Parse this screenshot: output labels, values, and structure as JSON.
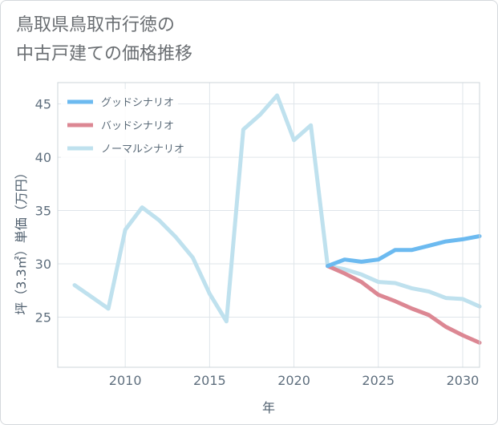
{
  "title": {
    "line1": "鳥取県鳥取市行徳の",
    "line2": "中古戸建ての価格推移"
  },
  "chart_data": {
    "type": "line",
    "xlabel": "年",
    "ylabel": "坪（3.3㎡）単価（万円）",
    "xlim": [
      2006,
      2031
    ],
    "ylim": [
      20.3,
      47
    ],
    "xticks": [
      2010,
      2015,
      2020,
      2025,
      2030
    ],
    "yticks": [
      25,
      30,
      35,
      40,
      45
    ],
    "legend_position": "top-left",
    "series": [
      {
        "name": "ノーマルシナリオ",
        "color": "#bfe1ee",
        "x": [
          2007,
          2008,
          2009,
          2010,
          2011,
          2012,
          2013,
          2014,
          2015,
          2016,
          2017,
          2018,
          2019,
          2020,
          2021,
          2022,
          2023,
          2024,
          2025,
          2026,
          2027,
          2028,
          2029,
          2030,
          2031
        ],
        "y": [
          28.0,
          26.9,
          25.8,
          33.2,
          35.3,
          34.1,
          32.5,
          30.6,
          27.2,
          24.6,
          42.6,
          44.0,
          45.8,
          41.6,
          43.0,
          29.8,
          29.5,
          29.0,
          28.3,
          28.2,
          27.7,
          27.4,
          26.8,
          26.7,
          26.0
        ]
      },
      {
        "name": "バッドシナリオ",
        "color": "#dc8793",
        "x": [
          2022,
          2023,
          2024,
          2025,
          2026,
          2027,
          2028,
          2029,
          2030,
          2031
        ],
        "y": [
          29.8,
          29.1,
          28.3,
          27.1,
          26.5,
          25.8,
          25.2,
          24.1,
          23.3,
          22.6
        ]
      },
      {
        "name": "グッドシナリオ",
        "color": "#6cbaf0",
        "x": [
          2022,
          2023,
          2024,
          2025,
          2026,
          2027,
          2028,
          2029,
          2030,
          2031
        ],
        "y": [
          29.8,
          30.4,
          30.2,
          30.4,
          31.3,
          31.3,
          31.7,
          32.1,
          32.3,
          32.6
        ]
      }
    ],
    "legend_order": [
      "グッドシナリオ",
      "バッドシナリオ",
      "ノーマルシナリオ"
    ]
  }
}
